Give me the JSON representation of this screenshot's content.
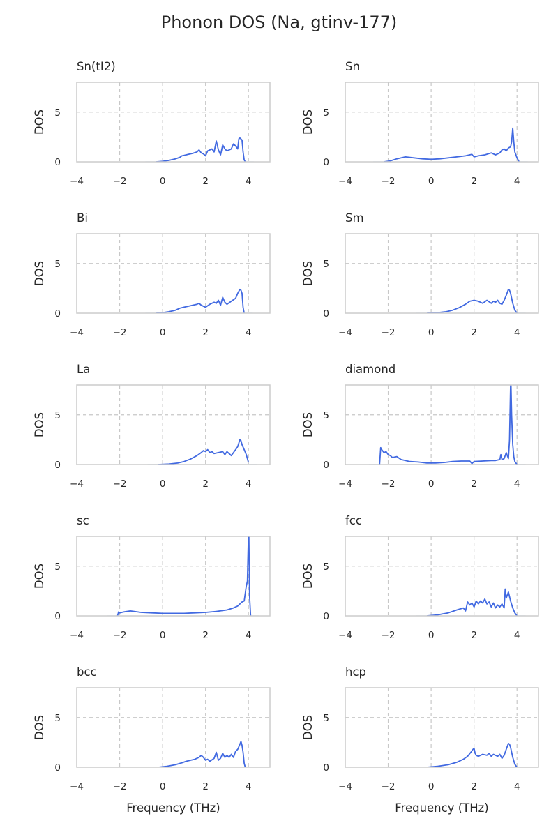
{
  "figure": {
    "title": "Phonon DOS (Na, gtinv-177)"
  },
  "chart_data": [
    {
      "type": "line",
      "title": "Sn(tI2)",
      "xlabel": "",
      "ylabel": "DOS",
      "xlim": [
        -4,
        5
      ],
      "ylim": [
        0,
        8
      ],
      "xticks": [
        -4,
        -2,
        0,
        2,
        4
      ],
      "yticks": [
        0,
        5
      ],
      "grid": true,
      "series": [
        {
          "color": "#4169e1",
          "x": [
            -0.3,
            0,
            0.3,
            0.6,
            0.8,
            0.9,
            1.0,
            1.2,
            1.4,
            1.6,
            1.7,
            1.8,
            1.9,
            2.0,
            2.1,
            2.2,
            2.3,
            2.4,
            2.5,
            2.6,
            2.7,
            2.8,
            2.9,
            3.0,
            3.1,
            3.2,
            3.3,
            3.4,
            3.5,
            3.55,
            3.6,
            3.65,
            3.7,
            3.75,
            3.8,
            3.85
          ],
          "y": [
            0,
            0.05,
            0.15,
            0.3,
            0.45,
            0.6,
            0.65,
            0.75,
            0.85,
            1.0,
            1.2,
            0.9,
            0.8,
            0.6,
            1.1,
            1.2,
            1.3,
            1.0,
            2.1,
            1.2,
            0.7,
            1.7,
            1.3,
            1.1,
            1.2,
            1.3,
            1.8,
            1.6,
            1.3,
            2.3,
            2.4,
            2.3,
            2.2,
            1.0,
            0.2,
            0
          ]
        }
      ]
    },
    {
      "type": "line",
      "title": "Sn",
      "xlabel": "",
      "ylabel": "DOS",
      "xlim": [
        -4,
        5
      ],
      "ylim": [
        0,
        8
      ],
      "xticks": [
        -4,
        -2,
        0,
        2,
        4
      ],
      "yticks": [
        0,
        5
      ],
      "grid": true,
      "series": [
        {
          "color": "#4169e1",
          "x": [
            -2.2,
            -1.9,
            -1.6,
            -1.2,
            -0.8,
            -0.4,
            0,
            0.4,
            0.8,
            1.2,
            1.6,
            1.9,
            2.0,
            2.2,
            2.5,
            2.8,
            3.0,
            3.2,
            3.3,
            3.4,
            3.5,
            3.6,
            3.7,
            3.75,
            3.8,
            3.85,
            3.9,
            4.0,
            4.1
          ],
          "y": [
            0,
            0.1,
            0.3,
            0.5,
            0.4,
            0.3,
            0.25,
            0.3,
            0.4,
            0.5,
            0.6,
            0.75,
            0.5,
            0.6,
            0.7,
            0.9,
            0.7,
            0.9,
            1.2,
            1.3,
            1.1,
            1.4,
            1.5,
            2.0,
            3.4,
            2.0,
            1.0,
            0.4,
            0
          ]
        }
      ]
    },
    {
      "type": "line",
      "title": "Bi",
      "xlabel": "",
      "ylabel": "DOS",
      "xlim": [
        -4,
        5
      ],
      "ylim": [
        0,
        8
      ],
      "xticks": [
        -4,
        -2,
        0,
        2,
        4
      ],
      "yticks": [
        0,
        5
      ],
      "grid": true,
      "series": [
        {
          "color": "#4169e1",
          "x": [
            -0.3,
            0,
            0.3,
            0.6,
            0.8,
            1.0,
            1.2,
            1.4,
            1.6,
            1.7,
            1.8,
            1.9,
            2.0,
            2.2,
            2.4,
            2.5,
            2.6,
            2.7,
            2.8,
            2.9,
            3.0,
            3.2,
            3.4,
            3.5,
            3.6,
            3.65,
            3.7,
            3.75,
            3.8
          ],
          "y": [
            0,
            0.05,
            0.15,
            0.3,
            0.5,
            0.6,
            0.7,
            0.8,
            0.9,
            1.0,
            0.8,
            0.7,
            0.6,
            0.9,
            1.1,
            1.0,
            1.3,
            0.8,
            1.6,
            1.1,
            0.9,
            1.2,
            1.5,
            2.0,
            2.4,
            2.3,
            2.0,
            0.6,
            0
          ]
        }
      ]
    },
    {
      "type": "line",
      "title": "Sm",
      "xlabel": "",
      "ylabel": "DOS",
      "xlim": [
        -4,
        5
      ],
      "ylim": [
        0,
        8
      ],
      "xticks": [
        -4,
        -2,
        0,
        2,
        4
      ],
      "yticks": [
        0,
        5
      ],
      "grid": true,
      "series": [
        {
          "color": "#4169e1",
          "x": [
            -0.2,
            0.3,
            0.7,
            1.0,
            1.3,
            1.6,
            1.8,
            2.0,
            2.2,
            2.4,
            2.6,
            2.8,
            2.9,
            3.0,
            3.1,
            3.2,
            3.3,
            3.4,
            3.5,
            3.6,
            3.65,
            3.7,
            3.8,
            3.9,
            4.0
          ],
          "y": [
            0,
            0.05,
            0.15,
            0.3,
            0.55,
            0.9,
            1.2,
            1.3,
            1.2,
            1.0,
            1.3,
            1.0,
            1.2,
            1.1,
            1.3,
            1.0,
            0.9,
            1.3,
            1.8,
            2.4,
            2.3,
            2.0,
            1.0,
            0.3,
            0
          ]
        }
      ]
    },
    {
      "type": "line",
      "title": "La",
      "xlabel": "",
      "ylabel": "DOS",
      "xlim": [
        -4,
        5
      ],
      "ylim": [
        0,
        8
      ],
      "xticks": [
        -4,
        -2,
        0,
        2,
        4
      ],
      "yticks": [
        0,
        5
      ],
      "grid": true,
      "series": [
        {
          "color": "#4169e1",
          "x": [
            -0.2,
            0.3,
            0.7,
            1.0,
            1.3,
            1.6,
            1.8,
            1.9,
            2.0,
            2.1,
            2.2,
            2.3,
            2.4,
            2.6,
            2.8,
            2.9,
            3.0,
            3.1,
            3.2,
            3.3,
            3.4,
            3.5,
            3.6,
            3.65,
            3.7,
            3.8,
            3.9,
            4.0
          ],
          "y": [
            0,
            0.05,
            0.15,
            0.3,
            0.55,
            0.9,
            1.2,
            1.4,
            1.3,
            1.5,
            1.2,
            1.3,
            1.1,
            1.2,
            1.3,
            1.0,
            1.3,
            1.1,
            0.9,
            1.2,
            1.5,
            1.8,
            2.5,
            2.4,
            2.0,
            1.5,
            1.0,
            0.2
          ]
        }
      ]
    },
    {
      "type": "line",
      "title": "diamond",
      "xlabel": "",
      "ylabel": "DOS",
      "xlim": [
        -4,
        5
      ],
      "ylim": [
        0,
        8
      ],
      "xticks": [
        -4,
        -2,
        0,
        2,
        4
      ],
      "yticks": [
        0,
        5
      ],
      "grid": true,
      "series": [
        {
          "color": "#4169e1",
          "x": [
            -2.4,
            -2.35,
            -2.3,
            -2.2,
            -2.1,
            -2.0,
            -1.9,
            -1.8,
            -1.6,
            -1.4,
            -1.2,
            -1.0,
            -0.6,
            -0.2,
            0.2,
            0.6,
            1.0,
            1.4,
            1.8,
            1.9,
            2.0,
            2.4,
            2.8,
            3.0,
            3.2,
            3.25,
            3.3,
            3.4,
            3.5,
            3.6,
            3.65,
            3.7,
            3.72,
            3.75,
            3.8,
            3.85,
            3.9,
            4.0
          ],
          "y": [
            0,
            1.7,
            1.5,
            1.2,
            1.3,
            1.0,
            0.9,
            0.7,
            0.8,
            0.5,
            0.4,
            0.3,
            0.25,
            0.15,
            0.15,
            0.2,
            0.3,
            0.35,
            0.35,
            0.1,
            0.3,
            0.35,
            0.4,
            0.4,
            0.5,
            1.0,
            0.5,
            0.6,
            1.2,
            0.6,
            2.5,
            8.0,
            8.0,
            5.0,
            2.0,
            0.8,
            0.3,
            0
          ]
        }
      ]
    },
    {
      "type": "line",
      "title": "sc",
      "xlabel": "",
      "ylabel": "DOS",
      "xlim": [
        -4,
        5
      ],
      "ylim": [
        0,
        8
      ],
      "xticks": [
        -4,
        -2,
        0,
        2,
        4
      ],
      "yticks": [
        0,
        5
      ],
      "grid": true,
      "series": [
        {
          "color": "#4169e1",
          "x": [
            -2.1,
            -2.05,
            -2.0,
            -1.8,
            -1.5,
            -1.0,
            -0.5,
            0,
            0.5,
            1.0,
            1.5,
            2.0,
            2.5,
            3.0,
            3.3,
            3.5,
            3.6,
            3.7,
            3.8,
            3.9,
            3.95,
            4.0,
            4.02,
            4.05,
            4.1
          ],
          "y": [
            0,
            0.4,
            0.3,
            0.4,
            0.5,
            0.35,
            0.3,
            0.25,
            0.25,
            0.25,
            0.3,
            0.35,
            0.45,
            0.6,
            0.8,
            1.0,
            1.2,
            1.4,
            1.5,
            3.0,
            3.5,
            8.0,
            8.0,
            2.0,
            0
          ]
        }
      ]
    },
    {
      "type": "line",
      "title": "fcc",
      "xlabel": "",
      "ylabel": "DOS",
      "xlim": [
        -4,
        5
      ],
      "ylim": [
        0,
        8
      ],
      "xticks": [
        -4,
        -2,
        0,
        2,
        4
      ],
      "yticks": [
        0,
        5
      ],
      "grid": true,
      "series": [
        {
          "color": "#4169e1",
          "x": [
            -0.2,
            0.3,
            0.8,
            1.2,
            1.5,
            1.6,
            1.7,
            1.8,
            1.9,
            2.0,
            2.1,
            2.2,
            2.3,
            2.4,
            2.5,
            2.6,
            2.7,
            2.8,
            2.9,
            3.0,
            3.1,
            3.2,
            3.3,
            3.4,
            3.45,
            3.5,
            3.55,
            3.6,
            3.7,
            3.8,
            3.9,
            4.0
          ],
          "y": [
            0,
            0.1,
            0.3,
            0.6,
            0.8,
            0.5,
            1.4,
            1.1,
            1.3,
            0.9,
            1.5,
            1.2,
            1.5,
            1.3,
            1.7,
            1.2,
            1.4,
            0.9,
            1.3,
            0.8,
            1.1,
            0.9,
            1.2,
            0.8,
            2.7,
            1.8,
            2.1,
            2.4,
            1.5,
            0.8,
            0.3,
            0
          ]
        }
      ]
    },
    {
      "type": "line",
      "title": "bcc",
      "xlabel": "Frequency (THz)",
      "ylabel": "DOS",
      "xlim": [
        -4,
        5
      ],
      "ylim": [
        0,
        8
      ],
      "xticks": [
        -4,
        -2,
        0,
        2,
        4
      ],
      "yticks": [
        0,
        5
      ],
      "grid": true,
      "series": [
        {
          "color": "#4169e1",
          "x": [
            -0.2,
            0.2,
            0.6,
            0.9,
            1.1,
            1.3,
            1.5,
            1.7,
            1.8,
            1.9,
            2.0,
            2.1,
            2.2,
            2.4,
            2.5,
            2.6,
            2.7,
            2.8,
            2.9,
            3.0,
            3.1,
            3.2,
            3.3,
            3.4,
            3.5,
            3.6,
            3.65,
            3.7,
            3.75,
            3.8,
            3.85
          ],
          "y": [
            0,
            0.1,
            0.25,
            0.45,
            0.6,
            0.7,
            0.8,
            1.0,
            1.2,
            1.0,
            0.7,
            0.8,
            0.6,
            0.9,
            1.5,
            0.7,
            0.9,
            1.4,
            1.0,
            1.2,
            1.0,
            1.3,
            1.0,
            1.6,
            1.8,
            2.3,
            2.6,
            2.2,
            1.5,
            0.4,
            0
          ]
        }
      ]
    },
    {
      "type": "line",
      "title": "hcp",
      "xlabel": "Frequency (THz)",
      "ylabel": "DOS",
      "xlim": [
        -4,
        5
      ],
      "ylim": [
        0,
        8
      ],
      "xticks": [
        -4,
        -2,
        0,
        2,
        4
      ],
      "yticks": [
        0,
        5
      ],
      "grid": true,
      "series": [
        {
          "color": "#4169e1",
          "x": [
            -0.2,
            0.3,
            0.8,
            1.2,
            1.5,
            1.7,
            1.85,
            1.95,
            2.0,
            2.05,
            2.1,
            2.2,
            2.4,
            2.6,
            2.7,
            2.8,
            2.9,
            3.0,
            3.1,
            3.2,
            3.3,
            3.4,
            3.5,
            3.6,
            3.65,
            3.7,
            3.8,
            3.9,
            4.0
          ],
          "y": [
            0,
            0.1,
            0.25,
            0.5,
            0.8,
            1.1,
            1.5,
            1.8,
            1.9,
            1.4,
            1.2,
            1.1,
            1.3,
            1.2,
            1.4,
            1.1,
            1.3,
            1.2,
            1.1,
            1.3,
            0.9,
            1.2,
            1.8,
            2.4,
            2.3,
            2.0,
            1.0,
            0.3,
            0
          ]
        }
      ]
    }
  ]
}
